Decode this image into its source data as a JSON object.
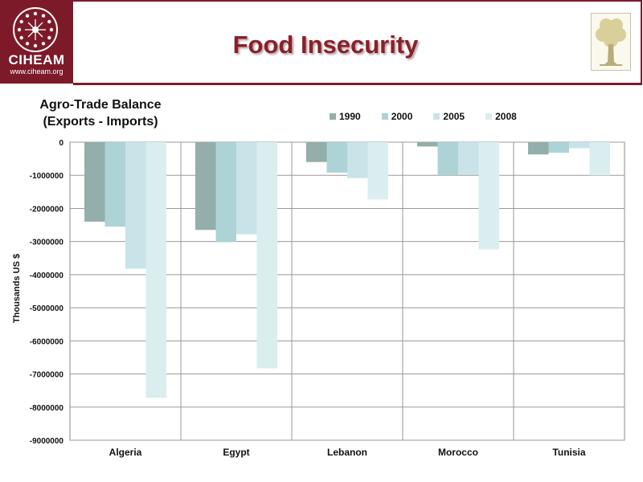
{
  "header": {
    "logo_text": "CIHEAM",
    "logo_url": "www.ciheam.org",
    "title": "Food Insecurity"
  },
  "icons": [
    "ciheam-logo-icon",
    "tree-icon"
  ],
  "chart_data": {
    "type": "bar",
    "title_line1": "Agro-Trade Balance",
    "title_line2": "(Exports - Imports)",
    "xlabel": "",
    "ylabel": "Thousands US $",
    "ylim": [
      -9000000,
      0
    ],
    "yticks": [
      0,
      -1000000,
      -2000000,
      -3000000,
      -4000000,
      -5000000,
      -6000000,
      -7000000,
      -8000000,
      -9000000
    ],
    "ytick_labels": [
      "0",
      "-1000000",
      "-2000000",
      "-3000000",
      "-4000000",
      "-5000000",
      "-6000000",
      "-7000000",
      "-8000000",
      "-9000000"
    ],
    "categories": [
      "Algeria",
      "Egypt",
      "Lebanon",
      "Morocco",
      "Tunisia"
    ],
    "legend_position": "top",
    "grid": true,
    "series": [
      {
        "name": "1990",
        "color": "#93aeab",
        "values": [
          -2400000,
          -2650000,
          -600000,
          -130000,
          -370000
        ]
      },
      {
        "name": "2000",
        "color": "#aed3d6",
        "values": [
          -2550000,
          -3020000,
          -920000,
          -1000000,
          -320000
        ]
      },
      {
        "name": "2005",
        "color": "#c8e4e8",
        "values": [
          -3820000,
          -2780000,
          -1080000,
          -980000,
          -180000
        ]
      },
      {
        "name": "2008",
        "color": "#daeef0",
        "values": [
          -7720000,
          -6830000,
          -1730000,
          -3240000,
          -1000000
        ]
      }
    ]
  }
}
